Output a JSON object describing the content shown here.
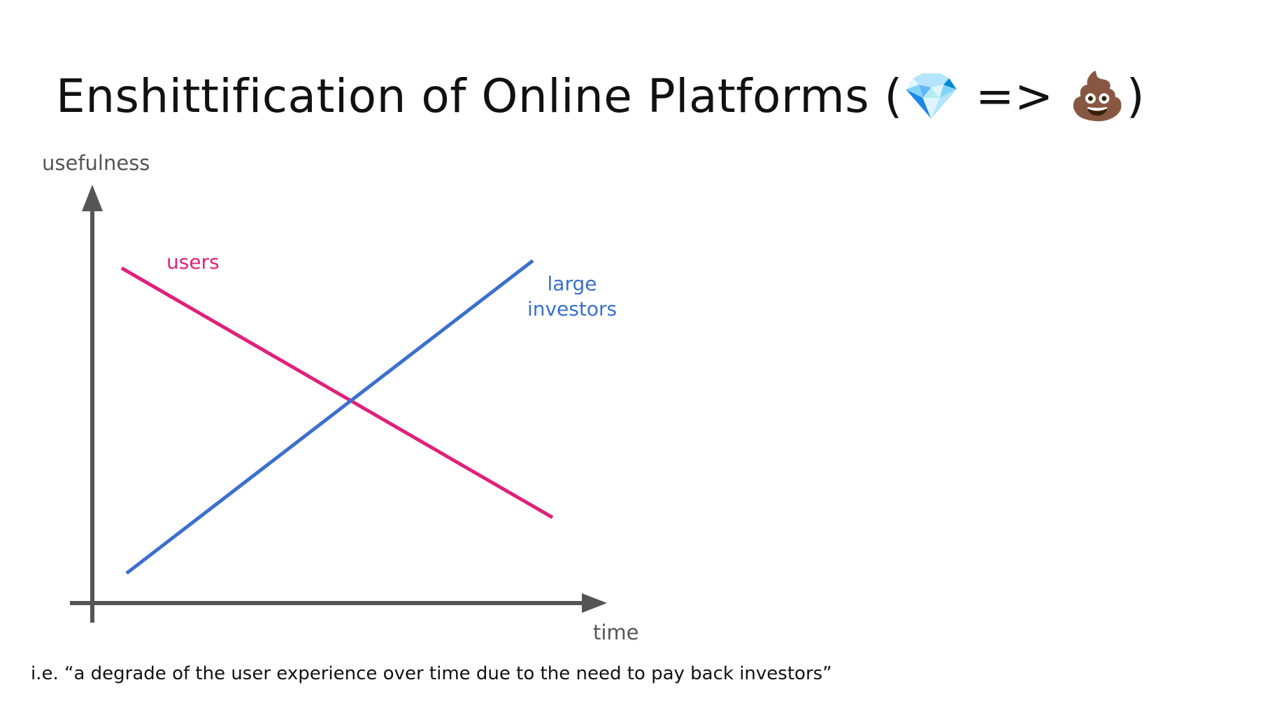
{
  "title": {
    "text": "Enshittification of Online Platforms (",
    "emoji_start": "💎",
    "arrow": " => ",
    "emoji_end": "💩",
    "close": ")"
  },
  "caption": "i.e. “a degrade of the user experience over time due to the need to pay back investors”",
  "colors": {
    "users": "#e0207a",
    "investors": "#3a6fcf",
    "axis": "#555555"
  },
  "chart_data": {
    "type": "line",
    "xlabel": "time",
    "ylabel": "usefulness",
    "xlim": [
      0,
      1
    ],
    "ylim": [
      0,
      1
    ],
    "grid": false,
    "series": [
      {
        "name": "users",
        "label_lines": [
          "users"
        ],
        "x": [
          0.06,
          0.94
        ],
        "y": [
          0.9,
          0.23
        ]
      },
      {
        "name": "large investors",
        "label_lines": [
          "large",
          "investors"
        ],
        "x": [
          0.07,
          0.9
        ],
        "y": [
          0.08,
          0.92
        ]
      }
    ]
  }
}
